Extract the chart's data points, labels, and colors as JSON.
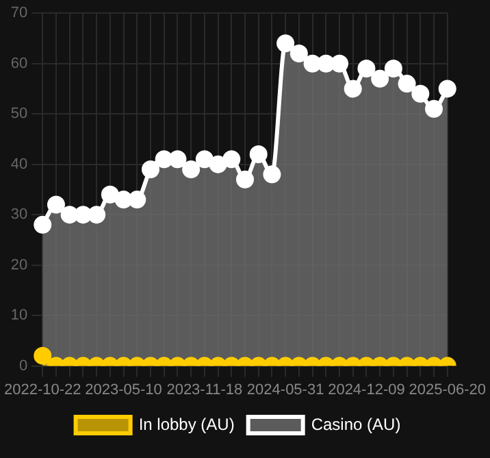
{
  "chart_data": {
    "type": "area",
    "categories": [
      "2022-10-22",
      null,
      null,
      null,
      null,
      null,
      "2023-05-10",
      null,
      null,
      null,
      null,
      null,
      "2023-11-18",
      null,
      null,
      null,
      null,
      null,
      "2024-05-31",
      null,
      null,
      null,
      null,
      null,
      "2024-12-09",
      null,
      null,
      null,
      null,
      null,
      "2025-06-20"
    ],
    "series": [
      {
        "name": "In lobby (AU)",
        "color": "#ffcc00",
        "values": [
          2,
          0,
          0,
          0,
          0,
          0,
          0,
          0,
          0,
          0,
          0,
          0,
          0,
          0,
          0,
          0,
          0,
          0,
          0,
          0,
          0,
          0,
          0,
          0,
          0,
          0,
          0,
          0,
          0,
          0,
          0
        ]
      },
      {
        "name": "Casino (AU)",
        "color": "#ffffff",
        "values": [
          28,
          32,
          30,
          30,
          30,
          34,
          33,
          33,
          39,
          41,
          41,
          39,
          41,
          40,
          41,
          37,
          42,
          38,
          64,
          62,
          60,
          60,
          60,
          55,
          59,
          57,
          59,
          56,
          54,
          51,
          55
        ]
      }
    ],
    "ylim": [
      0,
      70
    ],
    "yticks": [
      0,
      10,
      20,
      30,
      40,
      50,
      60,
      70
    ],
    "grid": true,
    "legend": "bottom",
    "marker": "circle"
  }
}
